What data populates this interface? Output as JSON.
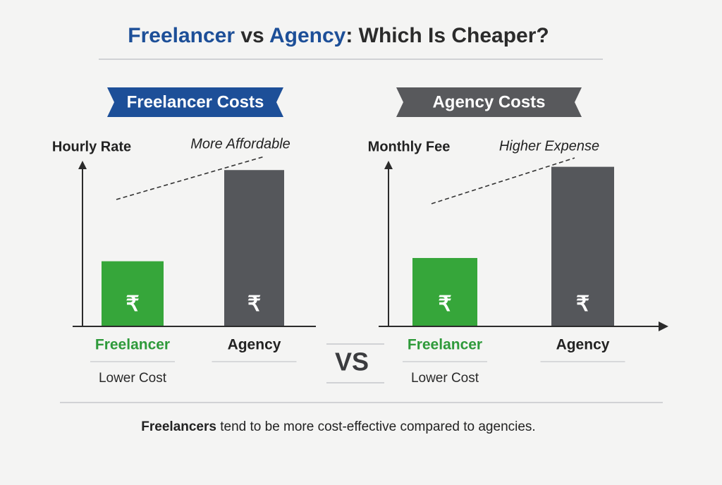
{
  "title_parts": [
    "Freelancer",
    " vs ",
    "Agency",
    ": Which Is Cheaper?"
  ],
  "vs": "VS",
  "footer_parts": [
    "Freelancers",
    " tend to be more cost-effective compared to agencies."
  ],
  "chart_data": [
    {
      "type": "bar",
      "title": "Freelancer Costs",
      "title_color": "#1d4f98",
      "y_label": "Hourly Rate",
      "annotation": "More Affordable",
      "categories": [
        "Freelancer",
        "Agency"
      ],
      "category_colors": [
        "#2e9a3a",
        "#222222"
      ],
      "category_notes": [
        "Lower Cost",
        null
      ],
      "values": [
        40,
        96
      ],
      "colors": [
        "#36a63a",
        "#55575b"
      ],
      "bar_symbols": [
        "₹",
        "₹"
      ],
      "ylim": [
        0,
        100
      ]
    },
    {
      "type": "bar",
      "title": "Agency Costs",
      "title_color": "#58595c",
      "y_label": "Monthly Fee",
      "annotation": "Higher Expense",
      "categories": [
        "Freelancer",
        "Agency"
      ],
      "category_colors": [
        "#2e9a3a",
        "#222222"
      ],
      "category_notes": [
        "Lower Cost",
        null
      ],
      "values": [
        42,
        98
      ],
      "colors": [
        "#36a63a",
        "#55575b"
      ],
      "bar_symbols": [
        "₹",
        "₹"
      ],
      "ylim": [
        0,
        100
      ]
    }
  ]
}
